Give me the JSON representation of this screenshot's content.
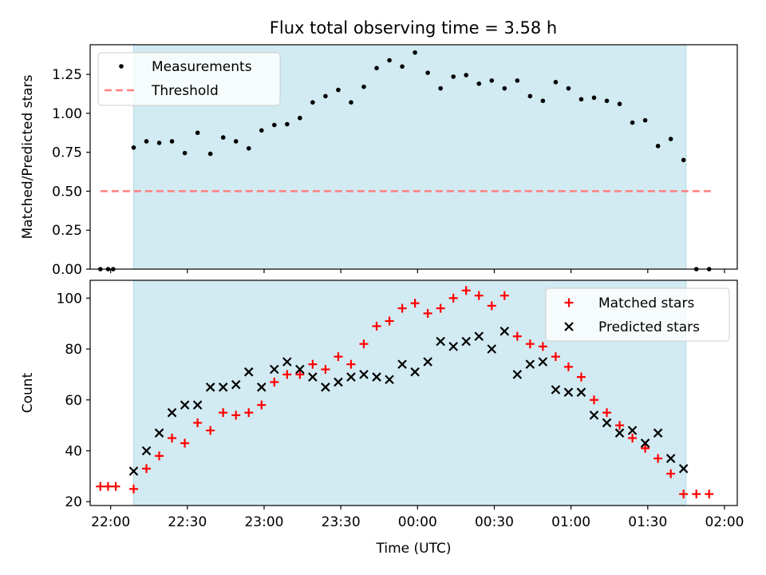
{
  "figure": {
    "title": "Flux total observing time = 3.58 h"
  },
  "chart_data": [
    {
      "type": "scatter",
      "title": "Flux total observing time = 3.58 h",
      "xlabel": "",
      "ylabel": "Matched/Predicted stars",
      "x_tick_labels": [
        "22:00",
        "22:30",
        "23:00",
        "23:30",
        "00:00",
        "00:30",
        "01:00",
        "01:30",
        "02:00"
      ],
      "y_ticks": [
        0.0,
        0.25,
        0.5,
        0.75,
        1.0,
        1.25
      ],
      "y_tick_labels": [
        "0.00",
        "0.25",
        "0.50",
        "0.75",
        "1.00",
        "1.25"
      ],
      "xlim": [
        "21:52",
        "02:05"
      ],
      "ylim": [
        0,
        1.44
      ],
      "grid": false,
      "legend": "upper-left",
      "observing_window": {
        "start": "22:09",
        "end": "01:45",
        "color": "#add8e6"
      },
      "threshold": {
        "name": "Threshold",
        "value": 0.5,
        "x_start": "21:56",
        "x_end": "01:56",
        "color": "#ff7f7f"
      },
      "series": [
        {
          "name": "Measurements",
          "color": "#000000",
          "points": [
            [
              "21:56",
              0.0
            ],
            [
              "21:59",
              0.0
            ],
            [
              "22:01",
              0.0
            ],
            [
              "22:09",
              0.78
            ],
            [
              "22:14",
              0.82
            ],
            [
              "22:19",
              0.81
            ],
            [
              "22:24",
              0.82
            ],
            [
              "22:29",
              0.745
            ],
            [
              "22:34",
              0.875
            ],
            [
              "22:39",
              0.74
            ],
            [
              "22:44",
              0.845
            ],
            [
              "22:49",
              0.82
            ],
            [
              "22:54",
              0.775
            ],
            [
              "22:59",
              0.89
            ],
            [
              "23:04",
              0.925
            ],
            [
              "23:09",
              0.93
            ],
            [
              "23:14",
              0.97
            ],
            [
              "23:19",
              1.07
            ],
            [
              "23:24",
              1.11
            ],
            [
              "23:29",
              1.15
            ],
            [
              "23:34",
              1.07
            ],
            [
              "23:39",
              1.17
            ],
            [
              "23:44",
              1.29
            ],
            [
              "23:49",
              1.34
            ],
            [
              "23:54",
              1.3
            ],
            [
              "23:59",
              1.39
            ],
            [
              "00:04",
              1.26
            ],
            [
              "00:09",
              1.16
            ],
            [
              "00:14",
              1.235
            ],
            [
              "00:19",
              1.245
            ],
            [
              "00:24",
              1.19
            ],
            [
              "00:29",
              1.21
            ],
            [
              "00:34",
              1.16
            ],
            [
              "00:39",
              1.21
            ],
            [
              "00:44",
              1.11
            ],
            [
              "00:49",
              1.08
            ],
            [
              "00:54",
              1.2
            ],
            [
              "00:59",
              1.16
            ],
            [
              "01:04",
              1.09
            ],
            [
              "01:09",
              1.1
            ],
            [
              "01:14",
              1.08
            ],
            [
              "01:19",
              1.06
            ],
            [
              "01:24",
              0.94
            ],
            [
              "01:29",
              0.955
            ],
            [
              "01:34",
              0.79
            ],
            [
              "01:39",
              0.835
            ],
            [
              "01:44",
              0.7
            ],
            [
              "01:49",
              0.0
            ],
            [
              "01:54",
              0.0
            ]
          ]
        }
      ]
    },
    {
      "type": "scatter",
      "title": "",
      "xlabel": "Time (UTC)",
      "ylabel": "Count",
      "x_tick_labels": [
        "22:00",
        "22:30",
        "23:00",
        "23:30",
        "00:00",
        "00:30",
        "01:00",
        "01:30",
        "02:00"
      ],
      "y_ticks": [
        20,
        40,
        60,
        80,
        100
      ],
      "y_tick_labels": [
        "20",
        "40",
        "60",
        "80",
        "100"
      ],
      "xlim": [
        "21:52",
        "02:05"
      ],
      "ylim": [
        18.5,
        107
      ],
      "grid": false,
      "legend": "upper-right",
      "observing_window": {
        "start": "22:09",
        "end": "01:45",
        "color": "#add8e6"
      },
      "series": [
        {
          "name": "Matched stars",
          "color": "#ff0000",
          "marker": "+",
          "points": [
            [
              "21:56",
              26
            ],
            [
              "21:59",
              26
            ],
            [
              "22:02",
              26
            ],
            [
              "22:09",
              25
            ],
            [
              "22:14",
              33
            ],
            [
              "22:19",
              38
            ],
            [
              "22:24",
              45
            ],
            [
              "22:29",
              43
            ],
            [
              "22:34",
              51
            ],
            [
              "22:39",
              48
            ],
            [
              "22:44",
              55
            ],
            [
              "22:49",
              54
            ],
            [
              "22:54",
              55
            ],
            [
              "22:59",
              58
            ],
            [
              "23:04",
              67
            ],
            [
              "23:09",
              70
            ],
            [
              "23:14",
              70
            ],
            [
              "23:19",
              74
            ],
            [
              "23:24",
              72
            ],
            [
              "23:29",
              77
            ],
            [
              "23:34",
              74
            ],
            [
              "23:39",
              82
            ],
            [
              "23:44",
              89
            ],
            [
              "23:49",
              91
            ],
            [
              "23:54",
              96
            ],
            [
              "23:59",
              98
            ],
            [
              "00:04",
              94
            ],
            [
              "00:09",
              96
            ],
            [
              "00:14",
              100
            ],
            [
              "00:19",
              103
            ],
            [
              "00:24",
              101
            ],
            [
              "00:29",
              97
            ],
            [
              "00:34",
              101
            ],
            [
              "00:39",
              85
            ],
            [
              "00:44",
              82
            ],
            [
              "00:49",
              81
            ],
            [
              "00:54",
              77
            ],
            [
              "00:59",
              73
            ],
            [
              "01:04",
              69
            ],
            [
              "01:09",
              60
            ],
            [
              "01:14",
              55
            ],
            [
              "01:19",
              50
            ],
            [
              "01:24",
              45
            ],
            [
              "01:29",
              41
            ],
            [
              "01:34",
              37
            ],
            [
              "01:39",
              31
            ],
            [
              "01:44",
              23
            ],
            [
              "01:49",
              23
            ],
            [
              "01:54",
              23
            ]
          ]
        },
        {
          "name": "Predicted stars",
          "color": "#000000",
          "marker": "x",
          "points": [
            [
              "22:09",
              32
            ],
            [
              "22:14",
              40
            ],
            [
              "22:19",
              47
            ],
            [
              "22:24",
              55
            ],
            [
              "22:29",
              58
            ],
            [
              "22:34",
              58
            ],
            [
              "22:39",
              65
            ],
            [
              "22:44",
              65
            ],
            [
              "22:49",
              66
            ],
            [
              "22:54",
              71
            ],
            [
              "22:59",
              65
            ],
            [
              "23:04",
              72
            ],
            [
              "23:09",
              75
            ],
            [
              "23:14",
              72
            ],
            [
              "23:19",
              69
            ],
            [
              "23:24",
              65
            ],
            [
              "23:29",
              67
            ],
            [
              "23:34",
              69
            ],
            [
              "23:39",
              70
            ],
            [
              "23:44",
              69
            ],
            [
              "23:49",
              68
            ],
            [
              "23:54",
              74
            ],
            [
              "23:59",
              71
            ],
            [
              "00:04",
              75
            ],
            [
              "00:09",
              83
            ],
            [
              "00:14",
              81
            ],
            [
              "00:19",
              83
            ],
            [
              "00:24",
              85
            ],
            [
              "00:29",
              80
            ],
            [
              "00:34",
              87
            ],
            [
              "00:39",
              70
            ],
            [
              "00:44",
              74
            ],
            [
              "00:49",
              75
            ],
            [
              "00:54",
              64
            ],
            [
              "00:59",
              63
            ],
            [
              "01:04",
              63
            ],
            [
              "01:09",
              54
            ],
            [
              "01:14",
              51
            ],
            [
              "01:19",
              47
            ],
            [
              "01:24",
              48
            ],
            [
              "01:29",
              43
            ],
            [
              "01:34",
              47
            ],
            [
              "01:39",
              37
            ],
            [
              "01:44",
              33
            ]
          ]
        }
      ]
    }
  ]
}
